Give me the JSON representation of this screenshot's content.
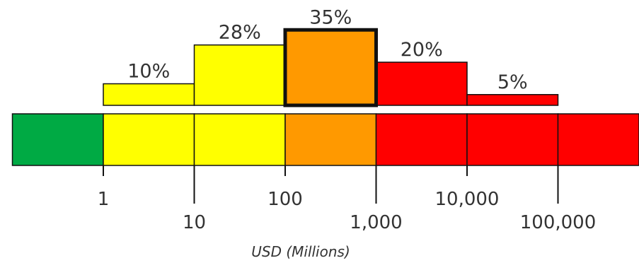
{
  "chart_data": {
    "type": "bar",
    "scale": "log10",
    "xlabel": "USD (Millions)",
    "bins": [
      {
        "from": 1,
        "to": 10,
        "value": 10,
        "label": "10%",
        "color": "#ffff00"
      },
      {
        "from": 10,
        "to": 100,
        "value": 28,
        "label": "28%",
        "color": "#ffff00"
      },
      {
        "from": 100,
        "to": 1000,
        "value": 35,
        "label": "35%",
        "color": "#ff9900",
        "highlighted": true
      },
      {
        "from": 1000,
        "to": 10000,
        "value": 20,
        "label": "20%",
        "color": "#ff0000"
      },
      {
        "from": 10000,
        "to": 100000,
        "value": 5,
        "label": "5%",
        "color": "#ff0000"
      }
    ],
    "band": [
      {
        "from": 0.1,
        "to": 1,
        "color": "#00aa44"
      },
      {
        "from": 1,
        "to": 10,
        "color": "#ffff00"
      },
      {
        "from": 10,
        "to": 100,
        "color": "#ffff00"
      },
      {
        "from": 100,
        "to": 1000,
        "color": "#ff9900"
      },
      {
        "from": 1000,
        "to": 10000,
        "color": "#ff0000"
      },
      {
        "from": 10000,
        "to": 100000,
        "color": "#ff0000"
      },
      {
        "from": 100000,
        "to": 1000000,
        "color": "#ff0000"
      }
    ],
    "ticks": [
      {
        "value": 1,
        "label": "1",
        "row": 1
      },
      {
        "value": 10,
        "label": "10",
        "row": 2
      },
      {
        "value": 100,
        "label": "100",
        "row": 1
      },
      {
        "value": 1000,
        "label": "1,000",
        "row": 2
      },
      {
        "value": 10000,
        "label": "10,000",
        "row": 1
      },
      {
        "value": 100000,
        "label": "100,000",
        "row": 2
      }
    ]
  }
}
